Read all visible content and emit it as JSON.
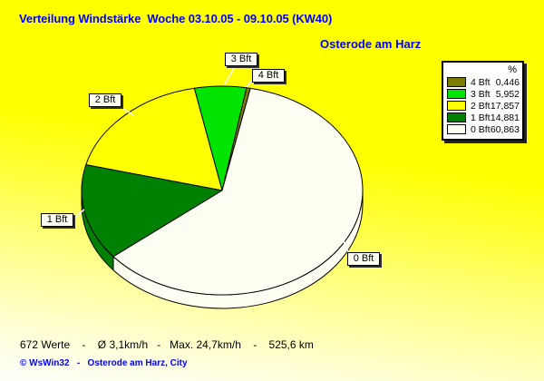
{
  "header": {
    "title": "Verteilung Windstärke  Woche 03.10.05 - 09.10.05 (KW40)",
    "subtitle": "Osterode am Harz"
  },
  "chart_data": {
    "type": "pie",
    "style": "3d-pie",
    "title": "Verteilung Windstärke  Woche 03.10.05 - 09.10.05 (KW40)",
    "subtitle": "Osterode am Harz",
    "legend": {
      "header": "%",
      "position": "top-right"
    },
    "slices": [
      {
        "label": "4 Bft",
        "value_pct": 0.446,
        "value_text": "0,446",
        "color": "#7C7C00"
      },
      {
        "label": "3 Bft",
        "value_pct": 5.952,
        "value_text": "5,952",
        "color": "#00E400"
      },
      {
        "label": "2 Bft",
        "value_pct": 17.857,
        "value_text": "17,857",
        "color": "#FFFF00"
      },
      {
        "label": "1 Bft",
        "value_pct": 14.881,
        "value_text": "14,881",
        "color": "#008000"
      },
      {
        "label": "0 Bft",
        "value_pct": 60.863,
        "value_text": "60,863",
        "color": "#FFFEF2"
      }
    ]
  },
  "footer": {
    "stats_line": "672 Werte    -    Ø 3,1km/h   -   Max. 24,7km/h    -    525,6 km",
    "copyright_line": "© WsWin32   -   Osterode am Harz, City"
  },
  "colors": {
    "background_top": "#FFFF00",
    "background_bottom": "#FFFFF8",
    "title_text": "#0000FF",
    "stats_text": "#000000",
    "copyright_text": "#0000FF",
    "callout_fill": "#FFFFF4",
    "legend_fill": "#FFFFFF"
  }
}
